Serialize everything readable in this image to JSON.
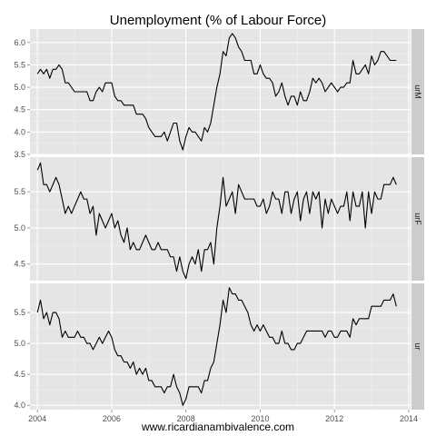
{
  "chart_data": {
    "type": "line",
    "title": "Unemployment (% of Labour Force)",
    "xlabel": "www.ricardianambivalence.com",
    "xlim": [
      2003.8,
      2014.05
    ],
    "xticks": [
      2004,
      2006,
      2008,
      2010,
      2012,
      2014
    ],
    "xtick_labels": [
      "2004",
      "2006",
      "2008",
      "2010",
      "2012",
      "2014"
    ],
    "panels": [
      {
        "strip": "urM",
        "ylim": [
          3.5,
          6.3
        ],
        "yticks": [
          3.5,
          4.0,
          4.5,
          5.0,
          5.5,
          6.0
        ],
        "ytick_labels": [
          "3.5",
          "4.0",
          "4.5",
          "5.0",
          "5.5",
          "6.0"
        ],
        "x": [
          2004.0,
          2004.083,
          2004.167,
          2004.25,
          2004.333,
          2004.417,
          2004.5,
          2004.583,
          2004.667,
          2004.75,
          2004.833,
          2004.917,
          2005.0,
          2005.083,
          2005.167,
          2005.25,
          2005.333,
          2005.417,
          2005.5,
          2005.583,
          2005.667,
          2005.75,
          2005.833,
          2005.917,
          2006.0,
          2006.083,
          2006.167,
          2006.25,
          2006.333,
          2006.417,
          2006.5,
          2006.583,
          2006.667,
          2006.75,
          2006.833,
          2006.917,
          2007.0,
          2007.083,
          2007.167,
          2007.25,
          2007.333,
          2007.417,
          2007.5,
          2007.583,
          2007.667,
          2007.75,
          2007.833,
          2007.917,
          2008.0,
          2008.083,
          2008.167,
          2008.25,
          2008.333,
          2008.417,
          2008.5,
          2008.583,
          2008.667,
          2008.75,
          2008.833,
          2008.917,
          2009.0,
          2009.083,
          2009.167,
          2009.25,
          2009.333,
          2009.417,
          2009.5,
          2009.583,
          2009.667,
          2009.75,
          2009.833,
          2009.917,
          2010.0,
          2010.083,
          2010.167,
          2010.25,
          2010.333,
          2010.417,
          2010.5,
          2010.583,
          2010.667,
          2010.75,
          2010.833,
          2010.917,
          2011.0,
          2011.083,
          2011.167,
          2011.25,
          2011.333,
          2011.417,
          2011.5,
          2011.583,
          2011.667,
          2011.75,
          2011.833,
          2011.917,
          2012.0,
          2012.083,
          2012.167,
          2012.25,
          2012.333,
          2012.417,
          2012.5,
          2012.583,
          2012.667,
          2012.75,
          2012.833,
          2012.917,
          2013.0,
          2013.083,
          2013.167,
          2013.25,
          2013.333,
          2013.417,
          2013.5,
          2013.583,
          2013.667
        ],
        "values": [
          5.3,
          5.4,
          5.3,
          5.4,
          5.2,
          5.4,
          5.4,
          5.5,
          5.4,
          5.1,
          5.1,
          5.0,
          4.9,
          4.9,
          4.9,
          4.9,
          4.9,
          4.7,
          4.7,
          4.9,
          5.0,
          4.9,
          5.1,
          5.1,
          5.1,
          4.8,
          4.7,
          4.7,
          4.6,
          4.6,
          4.6,
          4.6,
          4.4,
          4.4,
          4.4,
          4.3,
          4.1,
          4.0,
          3.9,
          3.9,
          3.9,
          4.0,
          3.8,
          4.0,
          4.2,
          4.2,
          3.8,
          3.6,
          3.9,
          4.1,
          4.0,
          4.0,
          3.9,
          3.8,
          4.1,
          4.0,
          4.2,
          4.6,
          5.0,
          5.3,
          5.8,
          5.7,
          6.1,
          6.2,
          6.1,
          5.9,
          5.8,
          5.6,
          5.6,
          5.6,
          5.3,
          5.3,
          5.5,
          5.3,
          5.2,
          5.2,
          5.1,
          4.8,
          4.9,
          5.1,
          4.8,
          4.6,
          4.8,
          4.8,
          4.6,
          4.9,
          4.7,
          4.7,
          4.9,
          5.2,
          5.1,
          5.2,
          5.1,
          4.9,
          5.0,
          5.1,
          5.0,
          4.9,
          5.0,
          5.0,
          5.1,
          5.1,
          5.6,
          5.3,
          5.3,
          5.4,
          5.5,
          5.3,
          5.7,
          5.5,
          5.6,
          5.8,
          5.8,
          5.7,
          5.6,
          5.6,
          5.6
        ]
      },
      {
        "strip": "urF",
        "ylim": [
          4.27,
          5.98
        ],
        "yticks": [
          4.5,
          5.0,
          5.5
        ],
        "ytick_labels": [
          "4.5",
          "5.0",
          "5.5"
        ],
        "x": [
          2004.0,
          2004.083,
          2004.167,
          2004.25,
          2004.333,
          2004.417,
          2004.5,
          2004.583,
          2004.667,
          2004.75,
          2004.833,
          2004.917,
          2005.0,
          2005.083,
          2005.167,
          2005.25,
          2005.333,
          2005.417,
          2005.5,
          2005.583,
          2005.667,
          2005.75,
          2005.833,
          2005.917,
          2006.0,
          2006.083,
          2006.167,
          2006.25,
          2006.333,
          2006.417,
          2006.5,
          2006.583,
          2006.667,
          2006.75,
          2006.833,
          2006.917,
          2007.0,
          2007.083,
          2007.167,
          2007.25,
          2007.333,
          2007.417,
          2007.5,
          2007.583,
          2007.667,
          2007.75,
          2007.833,
          2007.917,
          2008.0,
          2008.083,
          2008.167,
          2008.25,
          2008.333,
          2008.417,
          2008.5,
          2008.583,
          2008.667,
          2008.75,
          2008.833,
          2008.917,
          2009.0,
          2009.083,
          2009.167,
          2009.25,
          2009.333,
          2009.417,
          2009.5,
          2009.583,
          2009.667,
          2009.75,
          2009.833,
          2009.917,
          2010.0,
          2010.083,
          2010.167,
          2010.25,
          2010.333,
          2010.417,
          2010.5,
          2010.583,
          2010.667,
          2010.75,
          2010.833,
          2010.917,
          2011.0,
          2011.083,
          2011.167,
          2011.25,
          2011.333,
          2011.417,
          2011.5,
          2011.583,
          2011.667,
          2011.75,
          2011.833,
          2011.917,
          2012.0,
          2012.083,
          2012.167,
          2012.25,
          2012.333,
          2012.417,
          2012.5,
          2012.583,
          2012.667,
          2012.75,
          2012.833,
          2012.917,
          2013.0,
          2013.083,
          2013.167,
          2013.25,
          2013.333,
          2013.417,
          2013.5,
          2013.583,
          2013.667
        ],
        "values": [
          5.8,
          5.9,
          5.6,
          5.6,
          5.5,
          5.6,
          5.7,
          5.6,
          5.4,
          5.2,
          5.3,
          5.2,
          5.3,
          5.4,
          5.5,
          5.4,
          5.4,
          5.2,
          5.3,
          4.9,
          5.2,
          5.1,
          5.0,
          5.1,
          5.2,
          5.0,
          5.1,
          4.9,
          4.8,
          5.0,
          4.7,
          4.8,
          4.7,
          4.7,
          4.8,
          4.9,
          4.8,
          4.7,
          4.7,
          4.8,
          4.7,
          4.7,
          4.7,
          4.6,
          4.6,
          4.4,
          4.6,
          4.4,
          4.3,
          4.5,
          4.6,
          4.5,
          4.7,
          4.4,
          4.7,
          4.7,
          4.8,
          4.5,
          5.0,
          5.3,
          5.7,
          5.3,
          5.4,
          5.5,
          5.2,
          5.6,
          5.5,
          5.4,
          5.4,
          5.4,
          5.4,
          5.3,
          5.3,
          5.4,
          5.2,
          5.3,
          5.5,
          5.4,
          5.4,
          5.2,
          5.5,
          5.5,
          5.2,
          5.4,
          5.5,
          5.1,
          5.4,
          5.5,
          5.2,
          5.5,
          5.4,
          5.5,
          5.0,
          5.4,
          5.2,
          5.4,
          5.3,
          5.2,
          5.3,
          5.3,
          5.5,
          5.1,
          5.5,
          5.3,
          5.3,
          5.5,
          5.0,
          5.5,
          5.2,
          5.5,
          5.4,
          5.4,
          5.6,
          5.6,
          5.6,
          5.7,
          5.6
        ]
      },
      {
        "strip": "ur",
        "ylim": [
          3.93,
          5.97
        ],
        "yticks": [
          4.0,
          4.5,
          5.0,
          5.5
        ],
        "ytick_labels": [
          "4.0",
          "4.5",
          "5.0",
          "5.5"
        ],
        "x": [
          2004.0,
          2004.083,
          2004.167,
          2004.25,
          2004.333,
          2004.417,
          2004.5,
          2004.583,
          2004.667,
          2004.75,
          2004.833,
          2004.917,
          2005.0,
          2005.083,
          2005.167,
          2005.25,
          2005.333,
          2005.417,
          2005.5,
          2005.583,
          2005.667,
          2005.75,
          2005.833,
          2005.917,
          2006.0,
          2006.083,
          2006.167,
          2006.25,
          2006.333,
          2006.417,
          2006.5,
          2006.583,
          2006.667,
          2006.75,
          2006.833,
          2006.917,
          2007.0,
          2007.083,
          2007.167,
          2007.25,
          2007.333,
          2007.417,
          2007.5,
          2007.583,
          2007.667,
          2007.75,
          2007.833,
          2007.917,
          2008.0,
          2008.083,
          2008.167,
          2008.25,
          2008.333,
          2008.417,
          2008.5,
          2008.583,
          2008.667,
          2008.75,
          2008.833,
          2008.917,
          2009.0,
          2009.083,
          2009.167,
          2009.25,
          2009.333,
          2009.417,
          2009.5,
          2009.583,
          2009.667,
          2009.75,
          2009.833,
          2009.917,
          2010.0,
          2010.083,
          2010.167,
          2010.25,
          2010.333,
          2010.417,
          2010.5,
          2010.583,
          2010.667,
          2010.75,
          2010.833,
          2010.917,
          2011.0,
          2011.083,
          2011.167,
          2011.25,
          2011.333,
          2011.417,
          2011.5,
          2011.583,
          2011.667,
          2011.75,
          2011.833,
          2011.917,
          2012.0,
          2012.083,
          2012.167,
          2012.25,
          2012.333,
          2012.417,
          2012.5,
          2012.583,
          2012.667,
          2012.75,
          2012.833,
          2012.917,
          2013.0,
          2013.083,
          2013.167,
          2013.25,
          2013.333,
          2013.417,
          2013.5,
          2013.583,
          2013.667
        ],
        "values": [
          5.5,
          5.7,
          5.4,
          5.5,
          5.3,
          5.5,
          5.5,
          5.4,
          5.1,
          5.2,
          5.1,
          5.1,
          5.1,
          5.2,
          5.1,
          5.1,
          5.0,
          5.0,
          4.9,
          5.0,
          5.1,
          5.0,
          5.1,
          5.2,
          5.1,
          4.9,
          4.8,
          4.8,
          4.7,
          4.7,
          4.6,
          4.7,
          4.5,
          4.6,
          4.5,
          4.6,
          4.4,
          4.4,
          4.3,
          4.3,
          4.3,
          4.2,
          4.3,
          4.3,
          4.5,
          4.3,
          4.2,
          4.0,
          4.1,
          4.3,
          4.3,
          4.3,
          4.3,
          4.2,
          4.4,
          4.4,
          4.6,
          4.7,
          5.0,
          5.3,
          5.7,
          5.5,
          5.9,
          5.8,
          5.8,
          5.7,
          5.7,
          5.6,
          5.5,
          5.3,
          5.2,
          5.3,
          5.2,
          5.3,
          5.2,
          5.1,
          5.1,
          5.0,
          5.0,
          5.2,
          5.0,
          5.0,
          4.9,
          4.9,
          5.0,
          5.0,
          5.1,
          5.2,
          5.2,
          5.2,
          5.2,
          5.2,
          5.2,
          5.1,
          5.2,
          5.2,
          5.1,
          5.1,
          5.2,
          5.2,
          5.2,
          5.1,
          5.4,
          5.3,
          5.4,
          5.4,
          5.4,
          5.4,
          5.6,
          5.6,
          5.6,
          5.6,
          5.7,
          5.7,
          5.7,
          5.8,
          5.6
        ]
      }
    ],
    "grid": true
  },
  "colors": {
    "panel_background": "#e5e5e5",
    "gridline_major": "#ffffff",
    "gridline_minor": "#f2f2f2",
    "strip_background": "#cccccc",
    "line": "#000000",
    "tick": "#7f7f7f"
  }
}
